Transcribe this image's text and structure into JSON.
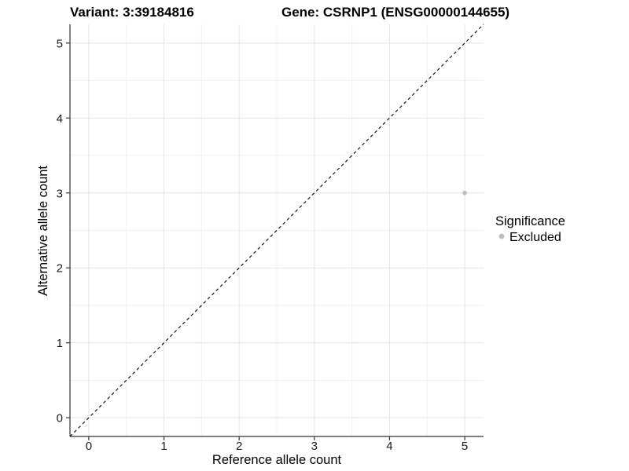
{
  "titles": {
    "left": "Variant: 3:39184816",
    "right": "Gene: CSRNP1 (ENSG00000144655)"
  },
  "chart_data": {
    "type": "scatter",
    "xlabel": "Reference allele count",
    "ylabel": "Alternative allele count",
    "xlim": [
      -0.25,
      5.25
    ],
    "ylim": [
      -0.25,
      5.25
    ],
    "xticks": [
      0,
      1,
      2,
      3,
      4,
      5
    ],
    "yticks": [
      0,
      1,
      2,
      3,
      4,
      5
    ],
    "minor_grid_step": 0.5,
    "grid": "major+minor",
    "points": [
      {
        "x": 5,
        "y": 3,
        "series": "Excluded"
      }
    ],
    "reference_line": {
      "type": "identity",
      "from": [
        -0.25,
        -0.25
      ],
      "to": [
        5.25,
        5.25
      ],
      "style": "dashed",
      "color": "#000000"
    },
    "legend": {
      "title": "Significance",
      "position": "right",
      "entries": [
        {
          "label": "Excluded",
          "color": "#bebebe"
        }
      ]
    },
    "style": {
      "background": "#ffffff",
      "grid_major_color": "#e3e3e3",
      "grid_minor_color": "#f1f1f1",
      "axis_line_color": "#333333",
      "tick_color": "#333333",
      "text_color": "#000000",
      "point_color": "#bebebe"
    }
  }
}
